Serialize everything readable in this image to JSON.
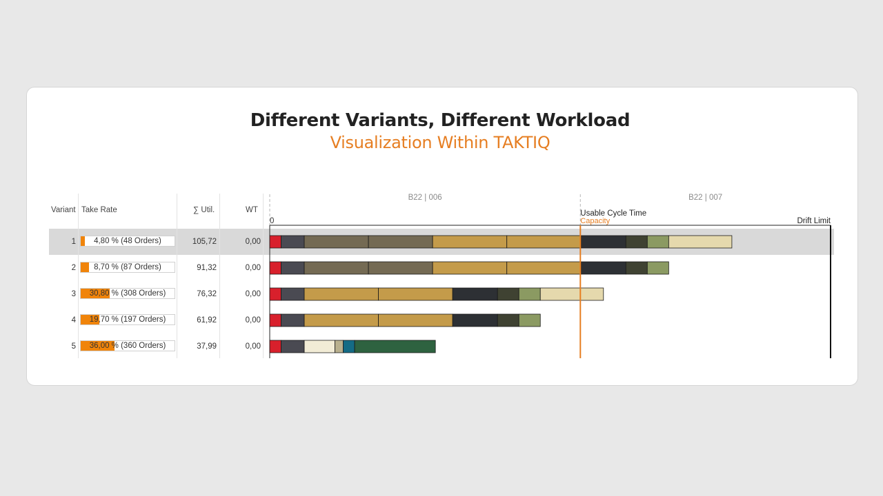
{
  "header": {
    "title": "Different Variants, Different Workload",
    "subtitle": "Visualization Within TAKTIQ"
  },
  "table": {
    "columns": [
      "Variant",
      "Take Rate",
      "∑ Util.",
      "WT"
    ],
    "rows": [
      {
        "variant": "1",
        "take_rate": 4.8,
        "take_rate_label": "4,80 % (48 Orders)",
        "util": "105,72",
        "wt": "0,00"
      },
      {
        "variant": "2",
        "take_rate": 8.7,
        "take_rate_label": "8,70 % (87 Orders)",
        "util": "91,32",
        "wt": "0,00"
      },
      {
        "variant": "3",
        "take_rate": 30.8,
        "take_rate_label": "30,80 % (308 Orders)",
        "util": "76,32",
        "wt": "0,00"
      },
      {
        "variant": "4",
        "take_rate": 19.7,
        "take_rate_label": "19,70 % (197 Orders)",
        "util": "61,92",
        "wt": "0,00"
      },
      {
        "variant": "5",
        "take_rate": 36.0,
        "take_rate_label": "36,00 % (360 Orders)",
        "util": "37,99",
        "wt": "0,00"
      }
    ]
  },
  "chart_data": {
    "type": "bar",
    "orientation": "horizontal",
    "stacked": true,
    "categories": [
      "1",
      "2",
      "3",
      "4",
      "5"
    ],
    "xlim": [
      0,
      162.5
    ],
    "zero_label": "0",
    "station_labels": [
      {
        "label": "B22 | 006",
        "at": 0
      },
      {
        "label": "B22 | 007",
        "at": 90
      }
    ],
    "usable_cycle_time": {
      "value": 90,
      "label": "Usable Cycle Time",
      "sublabel": "Capacity",
      "color": "#e67e22"
    },
    "drift_limit": {
      "value": 162.5,
      "label": "Drift Limit"
    },
    "series": [
      {
        "segments": [
          {
            "v": 3.3,
            "color": "#d8202c"
          },
          {
            "v": 6.7,
            "color": "#4a4a52"
          },
          {
            "v": 18.6,
            "color": "#746a53"
          },
          {
            "v": 18.6,
            "color": "#746a53"
          },
          {
            "v": 21.5,
            "color": "#c49b4a"
          },
          {
            "v": 21.5,
            "color": "#c49b4a"
          },
          {
            "v": 13.0,
            "color": "#2d3034"
          },
          {
            "v": 6.2,
            "color": "#3f4232"
          },
          {
            "v": 6.2,
            "color": "#8b9a62"
          },
          {
            "v": 18.3,
            "color": "#e5d9ad"
          }
        ]
      },
      {
        "segments": [
          {
            "v": 3.3,
            "color": "#d8202c"
          },
          {
            "v": 6.7,
            "color": "#4a4a52"
          },
          {
            "v": 18.6,
            "color": "#746a53"
          },
          {
            "v": 18.6,
            "color": "#746a53"
          },
          {
            "v": 21.5,
            "color": "#c49b4a"
          },
          {
            "v": 21.5,
            "color": "#c49b4a"
          },
          {
            "v": 13.0,
            "color": "#2d3034"
          },
          {
            "v": 6.2,
            "color": "#3f4232"
          },
          {
            "v": 6.2,
            "color": "#8b9a62"
          }
        ]
      },
      {
        "segments": [
          {
            "v": 3.3,
            "color": "#d8202c"
          },
          {
            "v": 6.7,
            "color": "#4a4a52"
          },
          {
            "v": 21.5,
            "color": "#c49b4a"
          },
          {
            "v": 21.5,
            "color": "#c49b4a"
          },
          {
            "v": 13.0,
            "color": "#2d3034"
          },
          {
            "v": 6.2,
            "color": "#3f4232"
          },
          {
            "v": 6.2,
            "color": "#8b9a62"
          },
          {
            "v": 18.3,
            "color": "#e5d9ad"
          }
        ]
      },
      {
        "segments": [
          {
            "v": 3.3,
            "color": "#d8202c"
          },
          {
            "v": 6.7,
            "color": "#4a4a52"
          },
          {
            "v": 21.5,
            "color": "#c49b4a"
          },
          {
            "v": 21.5,
            "color": "#c49b4a"
          },
          {
            "v": 13.0,
            "color": "#2d3034"
          },
          {
            "v": 6.2,
            "color": "#3f4232"
          },
          {
            "v": 6.2,
            "color": "#8b9a62"
          }
        ]
      },
      {
        "segments": [
          {
            "v": 3.3,
            "color": "#d8202c"
          },
          {
            "v": 6.7,
            "color": "#4a4a52"
          },
          {
            "v": 8.9,
            "color": "#f2ecd6"
          },
          {
            "v": 2.4,
            "color": "#b9b08e"
          },
          {
            "v": 3.3,
            "color": "#146b85"
          },
          {
            "v": 23.4,
            "color": "#2e6240"
          }
        ]
      }
    ]
  },
  "colors": {
    "accent": "#e67e22",
    "take_rate_bar": "#f0840a",
    "row_highlight": "#d9d9d9"
  }
}
